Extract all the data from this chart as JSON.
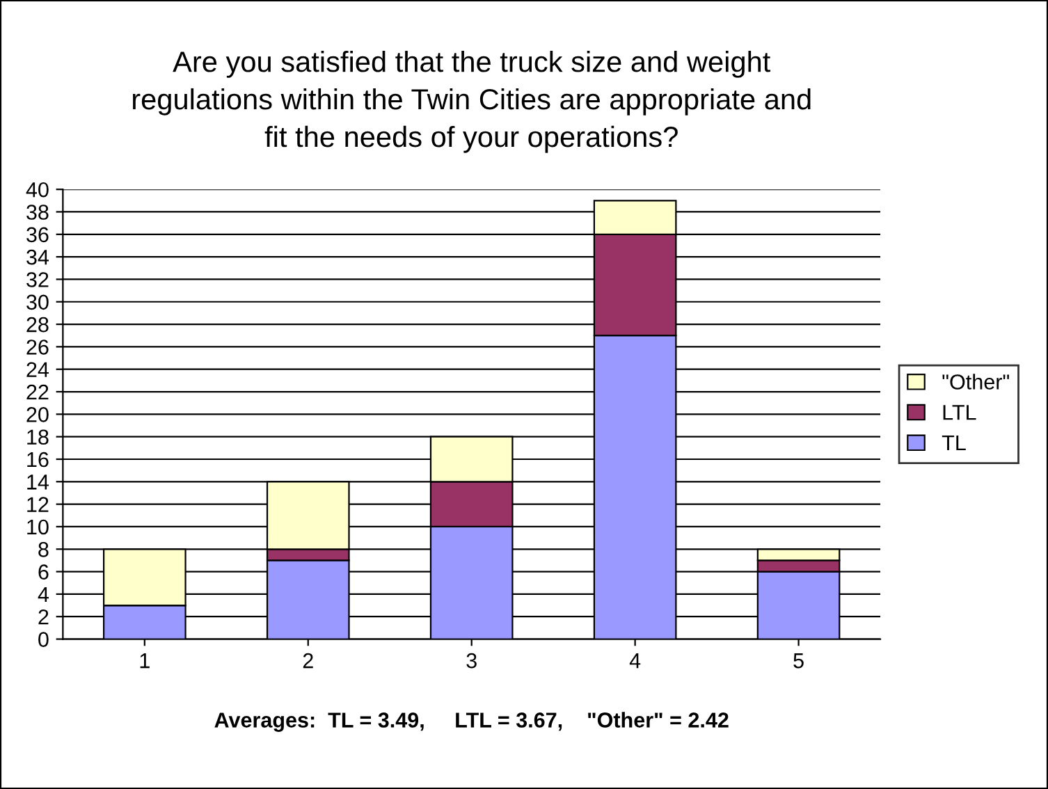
{
  "chart_data": {
    "type": "bar",
    "title": "Are you satisfied that the truck size and weight\nregulations within the Twin Cities are appropriate and\nfit the needs of your operations?",
    "categories": [
      "1",
      "2",
      "3",
      "4",
      "5"
    ],
    "series": [
      {
        "name": "TL",
        "color": "#9999ff",
        "values": [
          3,
          7,
          10,
          27,
          6
        ]
      },
      {
        "name": "LTL",
        "color": "#993366",
        "values": [
          0,
          1,
          4,
          9,
          1
        ]
      },
      {
        "name": "\"Other\"",
        "color": "#ffffcc",
        "values": [
          5,
          6,
          4,
          3,
          1
        ]
      }
    ],
    "stacked": true,
    "ylim": [
      0,
      40
    ],
    "yticks": [
      0,
      2,
      4,
      6,
      8,
      10,
      12,
      14,
      16,
      18,
      20,
      22,
      24,
      26,
      28,
      30,
      32,
      34,
      36,
      38,
      40
    ],
    "grid": "y",
    "legend": "right",
    "annotations": [
      "Averages:  TL = 3.49,     LTL = 3.67,    \"Other\" = 2.42"
    ]
  }
}
